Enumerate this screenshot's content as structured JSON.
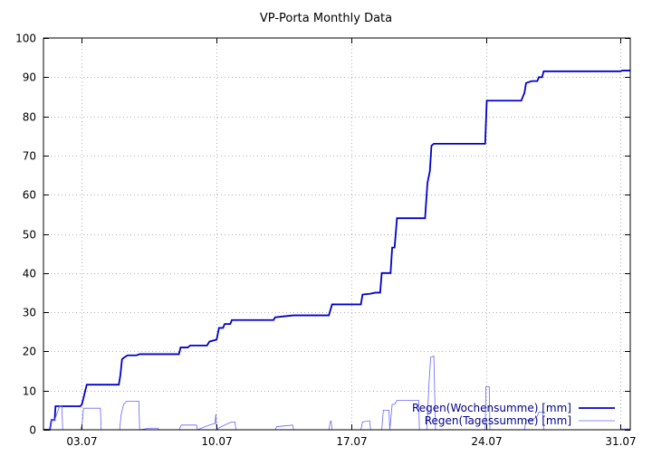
{
  "chart_data": {
    "type": "line",
    "title": "VP-Porta Monthly Data",
    "xlabel": "",
    "ylabel": "",
    "xlim": [
      "2010-07-01",
      "2010-07-31T12:00"
    ],
    "ylim": [
      0,
      100
    ],
    "y_ticks": [
      0,
      10,
      20,
      30,
      40,
      50,
      60,
      70,
      80,
      90,
      100
    ],
    "x_ticks": [
      {
        "value": "2010-07-03",
        "label": "03.07"
      },
      {
        "value": "2010-07-10",
        "label": "10.07"
      },
      {
        "value": "2010-07-17",
        "label": "17.07"
      },
      {
        "value": "2010-07-24",
        "label": "24.07"
      },
      {
        "value": "2010-07-31",
        "label": "31.07"
      }
    ],
    "grid": true,
    "legend": "bottom-right",
    "series": [
      {
        "name": "Regen(Wochensumme) [mm]",
        "color": "#0000cc",
        "style": "thick",
        "points": [
          [
            "2010-07-01T00:00",
            0
          ],
          [
            "2010-07-01T08:00",
            0
          ],
          [
            "2010-07-01T10:00",
            2.5
          ],
          [
            "2010-07-01T14:00",
            2.5
          ],
          [
            "2010-07-01T15:00",
            6
          ],
          [
            "2010-07-02T22:00",
            6
          ],
          [
            "2010-07-03T00:00",
            6.5
          ],
          [
            "2010-07-03T06:00",
            11.5
          ],
          [
            "2010-07-04T22:00",
            11.5
          ],
          [
            "2010-07-05T00:00",
            14
          ],
          [
            "2010-07-05T02:00",
            18
          ],
          [
            "2010-07-05T05:00",
            18.5
          ],
          [
            "2010-07-05T09:00",
            19
          ],
          [
            "2010-07-05T20:00",
            19
          ],
          [
            "2010-07-06T00:00",
            19.3
          ],
          [
            "2010-07-08T01:00",
            19.3
          ],
          [
            "2010-07-08T03:00",
            21
          ],
          [
            "2010-07-08T12:00",
            21
          ],
          [
            "2010-07-08T15:00",
            21.5
          ],
          [
            "2010-07-09T12:00",
            21.5
          ],
          [
            "2010-07-09T15:00",
            22.5
          ],
          [
            "2010-07-10T00:00",
            23
          ],
          [
            "2010-07-10T03:00",
            26
          ],
          [
            "2010-07-10T08:00",
            26
          ],
          [
            "2010-07-10T10:00",
            27
          ],
          [
            "2010-07-10T17:00",
            27
          ],
          [
            "2010-07-10T19:00",
            28
          ],
          [
            "2010-07-12T23:00",
            28
          ],
          [
            "2010-07-13T01:00",
            28.7
          ],
          [
            "2010-07-13T14:00",
            29
          ],
          [
            "2010-07-14T00:00",
            29.2
          ],
          [
            "2010-07-15T20:00",
            29.2
          ],
          [
            "2010-07-16T00:00",
            32
          ],
          [
            "2010-07-17T12:00",
            32
          ],
          [
            "2010-07-17T14:00",
            34.5
          ],
          [
            "2010-07-17T23:00",
            34.7
          ],
          [
            "2010-07-18T06:00",
            35
          ],
          [
            "2010-07-18T12:00",
            35
          ],
          [
            "2010-07-18T14:00",
            40
          ],
          [
            "2010-07-19T01:00",
            40
          ],
          [
            "2010-07-19T03:00",
            46.5
          ],
          [
            "2010-07-19T06:00",
            46.5
          ],
          [
            "2010-07-19T09:00",
            54
          ],
          [
            "2010-07-20T20:00",
            54
          ],
          [
            "2010-07-20T23:00",
            63
          ],
          [
            "2010-07-21T02:00",
            66
          ],
          [
            "2010-07-21T04:00",
            72.5
          ],
          [
            "2010-07-21T07:00",
            73
          ],
          [
            "2010-07-23T23:00",
            73
          ],
          [
            "2010-07-24T01:00",
            84
          ],
          [
            "2010-07-25T20:00",
            84
          ],
          [
            "2010-07-26T00:00",
            86
          ],
          [
            "2010-07-26T02:00",
            88.5
          ],
          [
            "2010-07-26T09:00",
            89
          ],
          [
            "2010-07-26T16:00",
            89
          ],
          [
            "2010-07-26T18:00",
            90
          ],
          [
            "2010-07-26T22:00",
            90
          ],
          [
            "2010-07-27T00:00",
            91.5
          ],
          [
            "2010-07-31T00:00",
            91.5
          ],
          [
            "2010-07-31T02:00",
            91.7
          ],
          [
            "2010-07-31T12:00",
            91.7
          ]
        ]
      },
      {
        "name": "Regen(Tagessumme) [mm]",
        "color": "#6666ff",
        "style": "thin",
        "points": [
          [
            "2010-07-01T00:00",
            0
          ],
          [
            "2010-07-01T08:00",
            0
          ],
          [
            "2010-07-01T10:00",
            2.5
          ],
          [
            "2010-07-01T14:00",
            2.5
          ],
          [
            "2010-07-01T20:00",
            6
          ],
          [
            "2010-07-01T23:00",
            6
          ],
          [
            "2010-07-02T00:00",
            0
          ],
          [
            "2010-07-02T22:00",
            0
          ],
          [
            "2010-07-03T00:00",
            1
          ],
          [
            "2010-07-03T02:00",
            5.5
          ],
          [
            "2010-07-03T23:00",
            5.5
          ],
          [
            "2010-07-04T00:00",
            0
          ],
          [
            "2010-07-04T23:00",
            0
          ],
          [
            "2010-07-05T01:00",
            4
          ],
          [
            "2010-07-05T04:00",
            6.5
          ],
          [
            "2010-07-05T08:00",
            7.3
          ],
          [
            "2010-07-05T23:00",
            7.3
          ],
          [
            "2010-07-06T00:00",
            0
          ],
          [
            "2010-07-06T12:00",
            0.4
          ],
          [
            "2010-07-06T23:00",
            0.4
          ],
          [
            "2010-07-07T00:00",
            0
          ],
          [
            "2010-07-08T01:00",
            0
          ],
          [
            "2010-07-08T04:00",
            1.2
          ],
          [
            "2010-07-08T23:00",
            1.2
          ],
          [
            "2010-07-09T00:00",
            0
          ],
          [
            "2010-07-09T15:00",
            1.2
          ],
          [
            "2010-07-09T22:00",
            1.6
          ],
          [
            "2010-07-09T23:00",
            4
          ],
          [
            "2010-07-10T00:00",
            0
          ],
          [
            "2010-07-10T03:00",
            0.5
          ],
          [
            "2010-07-10T10:00",
            1.2
          ],
          [
            "2010-07-10T19:00",
            2
          ],
          [
            "2010-07-10T23:00",
            2
          ],
          [
            "2010-07-11T00:00",
            0
          ],
          [
            "2010-07-13T01:00",
            0
          ],
          [
            "2010-07-13T03:00",
            0.8
          ],
          [
            "2010-07-13T23:00",
            1.2
          ],
          [
            "2010-07-14T00:00",
            0
          ],
          [
            "2010-07-15T20:00",
            0
          ],
          [
            "2010-07-15T22:00",
            2.2
          ],
          [
            "2010-07-15T23:00",
            2.2
          ],
          [
            "2010-07-16T00:00",
            0
          ],
          [
            "2010-07-17T12:00",
            0
          ],
          [
            "2010-07-17T14:00",
            2
          ],
          [
            "2010-07-17T23:00",
            2.3
          ],
          [
            "2010-07-18T00:00",
            0
          ],
          [
            "2010-07-18T14:00",
            0
          ],
          [
            "2010-07-18T16:00",
            5
          ],
          [
            "2010-07-18T23:00",
            5
          ],
          [
            "2010-07-19T00:00",
            0
          ],
          [
            "2010-07-19T03:00",
            6.5
          ],
          [
            "2010-07-19T06:00",
            6.5
          ],
          [
            "2010-07-19T09:00",
            7.5
          ],
          [
            "2010-07-20T12:00",
            7.5
          ],
          [
            "2010-07-20T13:00",
            0
          ],
          [
            "2010-07-20T22:00",
            0
          ],
          [
            "2010-07-20T23:00",
            3.5
          ],
          [
            "2010-07-21T01:00",
            12
          ],
          [
            "2010-07-21T03:00",
            18.5
          ],
          [
            "2010-07-21T07:00",
            18.8
          ],
          [
            "2010-07-21T09:00",
            0
          ],
          [
            "2010-07-23T23:00",
            0
          ],
          [
            "2010-07-24T00:00",
            11
          ],
          [
            "2010-07-24T04:00",
            11
          ],
          [
            "2010-07-24T05:00",
            0
          ],
          [
            "2010-07-26T00:00",
            0
          ],
          [
            "2010-07-26T02:00",
            2.5
          ],
          [
            "2010-07-26T10:00",
            2.5
          ],
          [
            "2010-07-26T16:00",
            3.5
          ],
          [
            "2010-07-26T18:00",
            4.5
          ],
          [
            "2010-07-26T23:00",
            4.5
          ],
          [
            "2010-07-27T00:00",
            0
          ],
          [
            "2010-07-31T00:00",
            0
          ],
          [
            "2010-07-31T02:00",
            0.2
          ],
          [
            "2010-07-31T12:00",
            0.2
          ]
        ]
      }
    ]
  }
}
